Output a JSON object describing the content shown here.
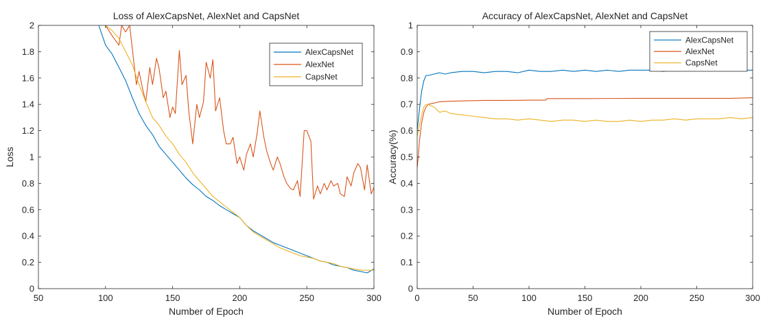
{
  "chart_data": [
    {
      "type": "line",
      "title": "Loss of AlexCapsNet, AlexNet and CapsNet",
      "xlabel": "Number of Epoch",
      "ylabel": "Loss",
      "xlim": [
        50,
        300
      ],
      "ylim": [
        0,
        2
      ],
      "xticks": [
        50,
        100,
        150,
        200,
        250,
        300
      ],
      "xtick_labels": [
        "50",
        "100",
        "150",
        "200",
        "250",
        "300"
      ],
      "yticks": [
        0,
        0.2,
        0.4,
        0.6,
        0.8,
        1,
        1.2,
        1.4,
        1.6,
        1.8,
        2
      ],
      "ytick_labels": [
        "0",
        "0.2",
        "0.4",
        "0.6",
        "0.8",
        "1",
        "1.2",
        "1.4",
        "1.6",
        "1.8",
        "2"
      ],
      "grid": false,
      "legend_position": "top-right",
      "series": [
        {
          "name": "AlexCapsNet",
          "color": "#0072BD",
          "x": [
            95,
            100,
            105,
            110,
            115,
            120,
            125,
            130,
            135,
            140,
            145,
            150,
            155,
            160,
            165,
            170,
            175,
            180,
            185,
            190,
            195,
            200,
            205,
            210,
            215,
            220,
            225,
            230,
            235,
            240,
            245,
            250,
            255,
            260,
            265,
            270,
            275,
            280,
            285,
            290,
            295,
            300
          ],
          "y": [
            2.0,
            1.85,
            1.78,
            1.68,
            1.58,
            1.45,
            1.33,
            1.24,
            1.17,
            1.08,
            1.02,
            0.96,
            0.9,
            0.84,
            0.79,
            0.75,
            0.7,
            0.67,
            0.63,
            0.6,
            0.57,
            0.54,
            0.48,
            0.44,
            0.41,
            0.38,
            0.35,
            0.33,
            0.31,
            0.29,
            0.27,
            0.25,
            0.23,
            0.21,
            0.2,
            0.18,
            0.17,
            0.16,
            0.14,
            0.13,
            0.12,
            0.15
          ]
        },
        {
          "name": "AlexNet",
          "color": "#D95319",
          "x": [
            100,
            105,
            110,
            112,
            115,
            118,
            120,
            123,
            125,
            128,
            130,
            133,
            135,
            138,
            140,
            143,
            145,
            148,
            150,
            152,
            155,
            157,
            160,
            162,
            165,
            168,
            170,
            173,
            175,
            178,
            180,
            182,
            185,
            188,
            190,
            193,
            195,
            198,
            200,
            203,
            205,
            208,
            210,
            213,
            215,
            218,
            220,
            223,
            225,
            228,
            230,
            233,
            235,
            238,
            240,
            243,
            245,
            248,
            250,
            253,
            255,
            258,
            260,
            263,
            265,
            268,
            270,
            273,
            275,
            278,
            280,
            283,
            285,
            288,
            290,
            293,
            295,
            298,
            300
          ],
          "y": [
            2.0,
            1.92,
            1.85,
            2.0,
            1.95,
            2.0,
            1.82,
            1.55,
            1.65,
            1.5,
            1.42,
            1.68,
            1.55,
            1.75,
            1.67,
            1.45,
            1.5,
            1.3,
            1.38,
            1.33,
            1.81,
            1.55,
            1.62,
            1.35,
            1.1,
            1.4,
            1.3,
            1.42,
            1.72,
            1.6,
            1.74,
            1.35,
            1.45,
            1.2,
            1.1,
            1.1,
            1.15,
            0.95,
            1.0,
            0.9,
            1.02,
            1.1,
            1.0,
            1.18,
            1.35,
            1.15,
            1.05,
            0.95,
            0.9,
            1.0,
            0.95,
            0.85,
            0.8,
            0.76,
            0.75,
            0.82,
            0.7,
            1.2,
            1.2,
            1.12,
            0.68,
            0.78,
            0.72,
            0.8,
            0.75,
            0.82,
            0.78,
            0.8,
            0.72,
            0.7,
            0.85,
            0.78,
            0.88,
            0.95,
            0.92,
            0.75,
            0.94,
            0.72,
            0.77
          ]
        },
        {
          "name": "CapsNet",
          "color": "#EDB120",
          "x": [
            100,
            105,
            110,
            115,
            120,
            125,
            130,
            135,
            140,
            145,
            150,
            155,
            160,
            165,
            170,
            175,
            180,
            185,
            190,
            195,
            200,
            205,
            210,
            215,
            220,
            225,
            230,
            235,
            240,
            245,
            250,
            255,
            260,
            265,
            270,
            275,
            280,
            285,
            290,
            295,
            300
          ],
          "y": [
            2.0,
            1.96,
            1.9,
            1.8,
            1.7,
            1.55,
            1.42,
            1.3,
            1.24,
            1.16,
            1.1,
            1.02,
            0.96,
            0.88,
            0.82,
            0.76,
            0.7,
            0.66,
            0.62,
            0.58,
            0.54,
            0.48,
            0.43,
            0.4,
            0.37,
            0.34,
            0.31,
            0.29,
            0.27,
            0.25,
            0.24,
            0.23,
            0.21,
            0.2,
            0.19,
            0.17,
            0.16,
            0.15,
            0.14,
            0.14,
            0.14
          ]
        }
      ]
    },
    {
      "type": "line",
      "title": "Accuracy of AlexCapsNet, AlexNet and CapsNet",
      "xlabel": "Number of Epoch",
      "ylabel": "Accuracy(%)",
      "xlim": [
        0,
        300
      ],
      "ylim": [
        0,
        1
      ],
      "xticks": [
        0,
        50,
        100,
        150,
        200,
        250,
        300
      ],
      "xtick_labels": [
        "0",
        "50",
        "100",
        "150",
        "200",
        "250",
        "300"
      ],
      "yticks": [
        0,
        0.1,
        0.2,
        0.3,
        0.4,
        0.5,
        0.6,
        0.7,
        0.8,
        0.9,
        1
      ],
      "ytick_labels": [
        "0",
        "0.1",
        "0.2",
        "0.3",
        "0.4",
        "0.5",
        "0.6",
        "0.7",
        "0.8",
        "0.9",
        "1"
      ],
      "grid": false,
      "legend_position": "top-right",
      "series": [
        {
          "name": "AlexCapsNet",
          "color": "#0072BD",
          "x": [
            0,
            2,
            4,
            6,
            8,
            10,
            15,
            20,
            25,
            30,
            40,
            50,
            60,
            70,
            80,
            90,
            100,
            110,
            120,
            130,
            140,
            150,
            160,
            170,
            180,
            190,
            200,
            210,
            220,
            230,
            240,
            250,
            260,
            270,
            280,
            290,
            300
          ],
          "y": [
            0.6,
            0.68,
            0.75,
            0.79,
            0.81,
            0.81,
            0.815,
            0.82,
            0.815,
            0.82,
            0.825,
            0.825,
            0.82,
            0.825,
            0.825,
            0.82,
            0.83,
            0.825,
            0.825,
            0.83,
            0.825,
            0.83,
            0.825,
            0.83,
            0.825,
            0.83,
            0.83,
            0.83,
            0.825,
            0.83,
            0.83,
            0.83,
            0.83,
            0.83,
            0.83,
            0.83,
            0.83
          ]
        },
        {
          "name": "AlexNet",
          "color": "#D95319",
          "x": [
            0,
            1,
            2,
            4,
            6,
            8,
            10,
            15,
            20,
            30,
            40,
            50,
            60,
            80,
            100,
            115,
            116,
            150,
            200,
            250,
            280,
            300
          ],
          "y": [
            0.46,
            0.5,
            0.56,
            0.63,
            0.67,
            0.69,
            0.7,
            0.705,
            0.71,
            0.712,
            0.713,
            0.714,
            0.715,
            0.715,
            0.716,
            0.716,
            0.722,
            0.722,
            0.723,
            0.723,
            0.723,
            0.725
          ]
        },
        {
          "name": "CapsNet",
          "color": "#EDB120",
          "x": [
            0,
            2,
            4,
            6,
            8,
            10,
            12,
            15,
            20,
            25,
            30,
            40,
            50,
            60,
            70,
            80,
            90,
            100,
            110,
            120,
            130,
            140,
            150,
            160,
            170,
            180,
            190,
            200,
            210,
            220,
            230,
            240,
            250,
            260,
            270,
            280,
            290,
            300
          ],
          "y": [
            0.58,
            0.62,
            0.66,
            0.69,
            0.7,
            0.7,
            0.695,
            0.69,
            0.67,
            0.675,
            0.665,
            0.66,
            0.655,
            0.65,
            0.645,
            0.645,
            0.64,
            0.645,
            0.64,
            0.635,
            0.64,
            0.64,
            0.635,
            0.64,
            0.635,
            0.635,
            0.64,
            0.635,
            0.64,
            0.64,
            0.645,
            0.64,
            0.645,
            0.645,
            0.645,
            0.65,
            0.645,
            0.65
          ]
        }
      ]
    }
  ]
}
